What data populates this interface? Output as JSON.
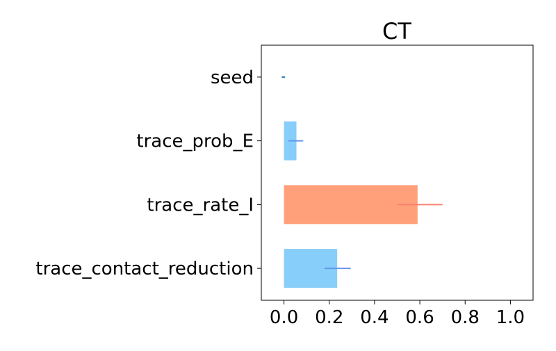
{
  "chart_data": {
    "type": "bar",
    "orientation": "horizontal",
    "title": "CT",
    "xlabel": "",
    "ylabel": "",
    "categories": [
      "seed",
      "trace_prob_E",
      "trace_rate_I",
      "trace_contact_reduction"
    ],
    "values": [
      0.0,
      0.055,
      0.59,
      0.235
    ],
    "error_low": [
      -0.01,
      0.02,
      0.5,
      0.18
    ],
    "error_high": [
      0.005,
      0.085,
      0.7,
      0.295
    ],
    "bar_colors": [
      "#87cefa",
      "#87cefa",
      "#ffa07a",
      "#87cefa"
    ],
    "error_colors": [
      "#1f77b4",
      "#6495ed",
      "#fa8072",
      "#6495ed"
    ],
    "xlim": [
      -0.1,
      1.1
    ],
    "xticks": [
      0.0,
      0.2,
      0.4,
      0.6,
      0.8,
      1.0
    ],
    "xtick_labels": [
      "0.0",
      "0.2",
      "0.4",
      "0.6",
      "0.8",
      "1.0"
    ],
    "grid": false,
    "legend": "none"
  }
}
